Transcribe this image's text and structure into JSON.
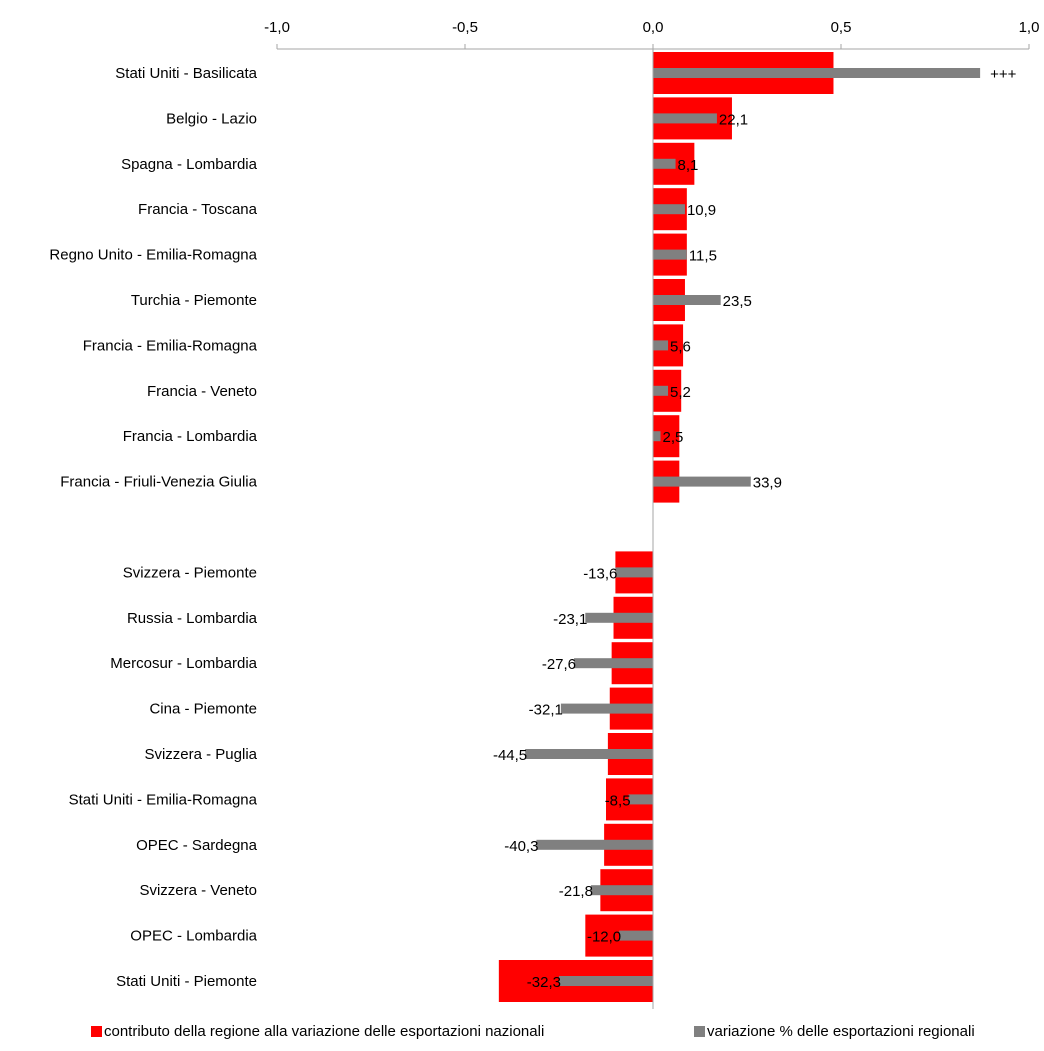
{
  "chart_data": {
    "type": "bar",
    "orientation": "horizontal",
    "xlim": [
      -1.0,
      1.0
    ],
    "x_ticks": [
      "-1,0",
      "-0,5",
      "0,0",
      "0,5",
      "1,0"
    ],
    "x_tick_values": [
      -1.0,
      -0.5,
      0.0,
      0.5,
      1.0
    ],
    "x_axis_position": "top",
    "grid": false,
    "legend_position": "bottom",
    "colors": {
      "contribution": "#ff0000",
      "variation": "#808080"
    },
    "groups": [
      {
        "categories": [
          "Stati Uniti - Basilicata",
          "Belgio - Lazio",
          "Spagna - Lombardia",
          "Francia - Toscana",
          "Regno Unito - Emilia-Romagna",
          "Turchia - Piemonte",
          "Francia - Emilia-Romagna",
          "Francia - Veneto",
          "Francia - Lombardia",
          "Francia - Friuli-Venezia Giulia"
        ],
        "contribution": [
          0.48,
          0.21,
          0.11,
          0.09,
          0.09,
          0.085,
          0.08,
          0.075,
          0.07,
          0.07
        ],
        "variation_bar": [
          0.87,
          0.17,
          0.06,
          0.085,
          0.09,
          0.18,
          0.04,
          0.04,
          0.02,
          0.26
        ],
        "variation_labels": [
          "+++",
          "22,1",
          "8,1",
          "10,9",
          "11,5",
          "23,5",
          "5,6",
          "5,2",
          "2,5",
          "33,9"
        ]
      },
      {
        "categories": [
          "Svizzera - Piemonte",
          "Russia - Lombardia",
          "Mercosur - Lombardia",
          "Cina - Piemonte",
          "Svizzera - Puglia",
          "Stati Uniti - Emilia-Romagna",
          "OPEC - Sardegna",
          "Svizzera - Veneto",
          "OPEC - Lombardia",
          "Stati Uniti - Piemonte"
        ],
        "contribution": [
          -0.1,
          -0.105,
          -0.11,
          -0.115,
          -0.12,
          -0.125,
          -0.13,
          -0.14,
          -0.18,
          -0.41
        ],
        "variation_bar": [
          -0.1,
          -0.18,
          -0.21,
          -0.245,
          -0.34,
          -0.065,
          -0.31,
          -0.165,
          -0.09,
          -0.25
        ],
        "variation_labels": [
          "-13,6",
          "-23,1",
          "-27,6",
          "-32,1",
          "-44,5",
          "-8,5",
          "-40,3",
          "-21,8",
          "-12,0",
          "-32,3"
        ]
      }
    ],
    "legend": [
      {
        "key": "contribution",
        "label": "contributo della regione alla variazione delle esportazioni nazionali"
      },
      {
        "key": "variation",
        "label": "variazione % delle esportazioni regionali"
      }
    ]
  }
}
